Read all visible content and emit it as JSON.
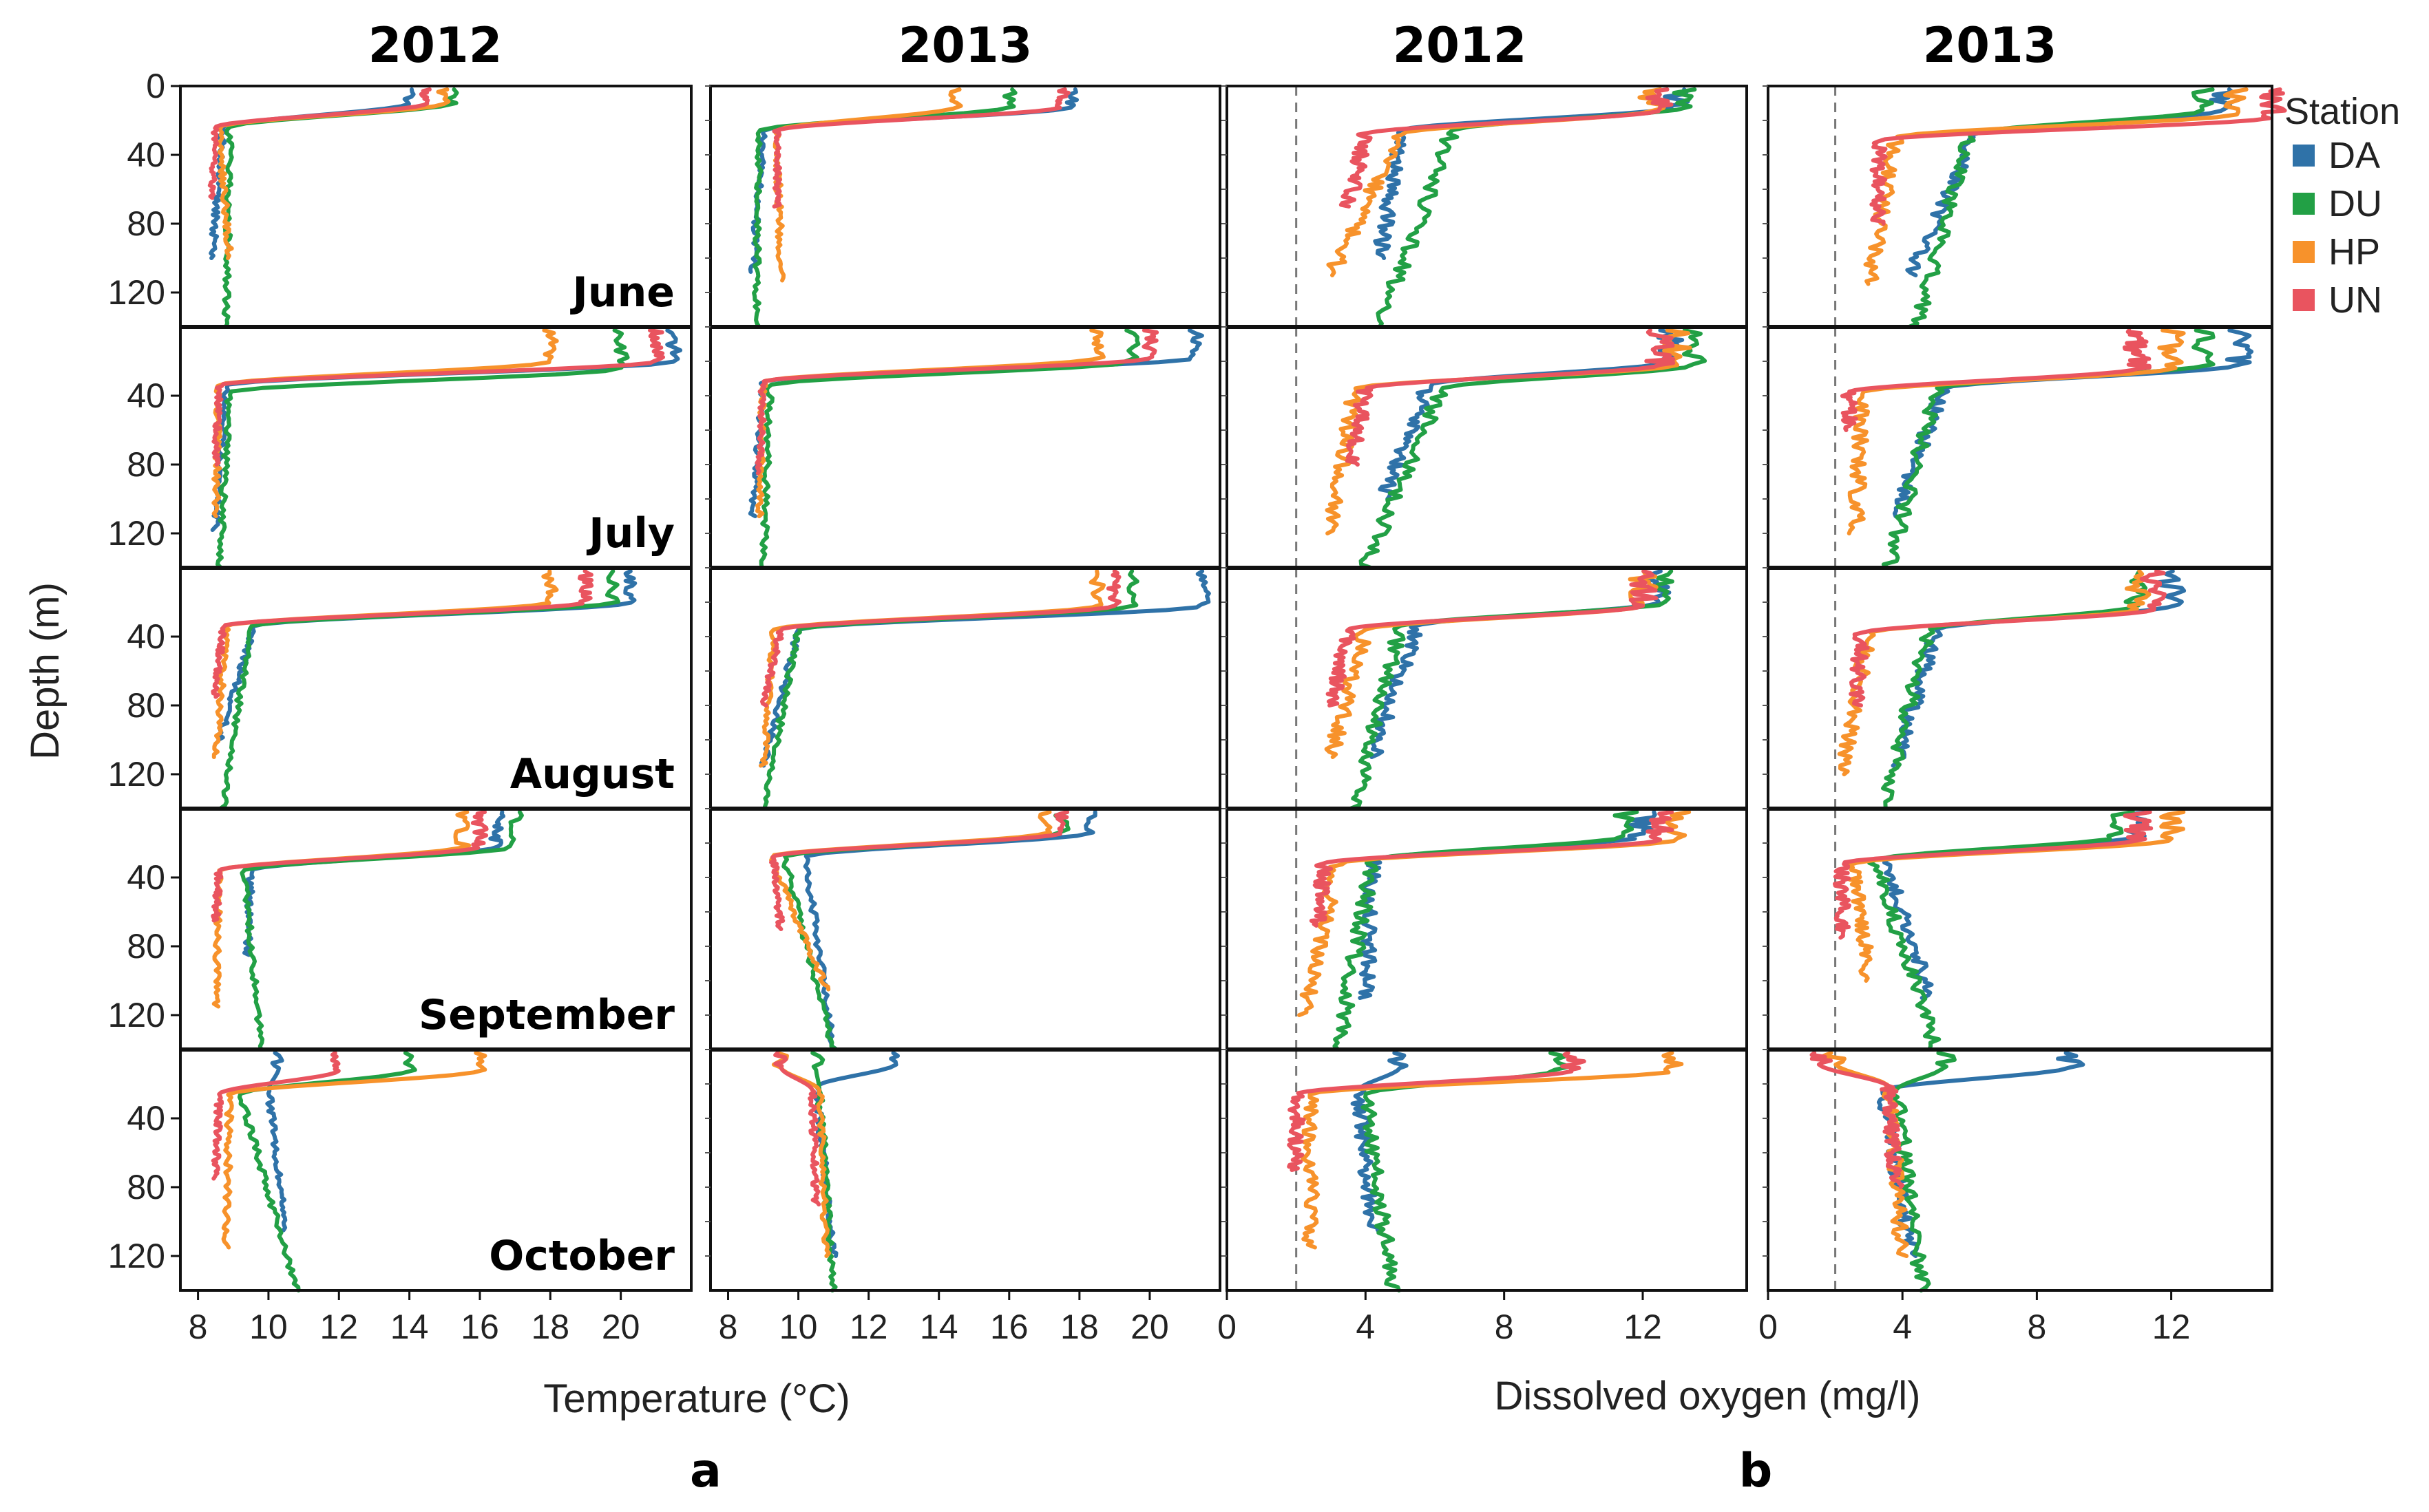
{
  "chart_data": {
    "type": "line",
    "title_row": {
      "col_titles": [
        "2012",
        "2013",
        "2012",
        "2013"
      ],
      "panel_labels": [
        "a",
        "b"
      ]
    },
    "ylabel": "Depth (m)",
    "yticks": [
      "0",
      "40",
      "80",
      "120"
    ],
    "ylim": [
      0,
      140
    ],
    "months": [
      "June",
      "July",
      "August",
      "September",
      "October"
    ],
    "temperature_axis": {
      "xlabel": "Temperature (°C)",
      "xticks": [
        "8",
        "10",
        "12",
        "14",
        "16",
        "18",
        "20"
      ],
      "xlim": [
        7.5,
        22
      ]
    },
    "oxygen_axis": {
      "xlabel": "Dissolved oxygen (mg/l)",
      "xticks": [
        "0",
        "4",
        "8",
        "12"
      ],
      "xlim": [
        0,
        15
      ],
      "threshold_mg_l": 2
    },
    "legend": {
      "title": "Station",
      "entries": [
        {
          "name": "DA",
          "color": "#2f72a8"
        },
        {
          "name": "DU",
          "color": "#22a045"
        },
        {
          "name": "HP",
          "color": "#f7922b"
        },
        {
          "name": "UN",
          "color": "#e9545f"
        }
      ]
    },
    "profiles": {
      "temperature": [
        [
          {
            "DA": {
              "surface": 14.0,
              "mid": 8.7,
              "deep": 8.4,
              "thermo_depth": 10,
              "max_depth": 100
            },
            "DU": {
              "surface": 15.2,
              "mid": 8.9,
              "deep": 8.8,
              "thermo_depth": 10,
              "max_depth": 140
            },
            "HP": {
              "surface": 15.0,
              "mid": 8.6,
              "deep": 8.9,
              "thermo_depth": 10,
              "max_depth": 100
            },
            "UN": {
              "surface": 14.5,
              "mid": 8.5,
              "deep": 8.4,
              "thermo_depth": 10,
              "max_depth": 65
            }
          },
          {
            "DA": {
              "surface": 17.8,
              "mid": 9.0,
              "deep": 8.7,
              "thermo_depth": 12,
              "max_depth": 108
            },
            "DU": {
              "surface": 16.0,
              "mid": 8.9,
              "deep": 8.8,
              "thermo_depth": 12,
              "max_depth": 140
            },
            "HP": {
              "surface": 14.5,
              "mid": 9.4,
              "deep": 9.5,
              "thermo_depth": 12,
              "max_depth": 113
            },
            "UN": {
              "surface": 17.5,
              "mid": 9.4,
              "deep": 9.4,
              "thermo_depth": 12,
              "max_depth": 70
            }
          }
        ],
        [
          {
            "DA": {
              "surface": 21.5,
              "mid": 8.8,
              "deep": 8.5,
              "thermo_depth": 20,
              "max_depth": 118
            },
            "DU": {
              "surface": 20.0,
              "mid": 8.9,
              "deep": 8.6,
              "thermo_depth": 24,
              "max_depth": 140
            },
            "HP": {
              "surface": 18.0,
              "mid": 8.6,
              "deep": 8.5,
              "thermo_depth": 20,
              "max_depth": 110
            },
            "UN": {
              "surface": 21.0,
              "mid": 8.6,
              "deep": 8.5,
              "thermo_depth": 20,
              "max_depth": 80
            }
          },
          {
            "DA": {
              "surface": 21.3,
              "mid": 9.0,
              "deep": 8.7,
              "thermo_depth": 18,
              "max_depth": 110
            },
            "DU": {
              "surface": 19.5,
              "mid": 9.2,
              "deep": 9.0,
              "thermo_depth": 20,
              "max_depth": 140
            },
            "HP": {
              "surface": 18.5,
              "mid": 9.0,
              "deep": 8.9,
              "thermo_depth": 18,
              "max_depth": 110
            },
            "UN": {
              "surface": 20.0,
              "mid": 9.0,
              "deep": 8.9,
              "thermo_depth": 18,
              "max_depth": 85
            }
          }
        ],
        [
          {
            "DA": {
              "surface": 20.3,
              "mid": 9.6,
              "deep": 8.6,
              "thermo_depth": 20,
              "max_depth": 100
            },
            "DU": {
              "surface": 19.8,
              "mid": 9.5,
              "deep": 8.7,
              "thermo_depth": 20,
              "max_depth": 140
            },
            "HP": {
              "surface": 18.0,
              "mid": 8.8,
              "deep": 8.5,
              "thermo_depth": 20,
              "max_depth": 110
            },
            "UN": {
              "surface": 19.0,
              "mid": 8.7,
              "deep": 8.5,
              "thermo_depth": 20,
              "max_depth": 75
            }
          },
          {
            "DA": {
              "surface": 21.5,
              "mid": 10.0,
              "deep": 9.0,
              "thermo_depth": 22,
              "max_depth": 115
            },
            "DU": {
              "surface": 19.5,
              "mid": 10.0,
              "deep": 9.0,
              "thermo_depth": 22,
              "max_depth": 140
            },
            "HP": {
              "surface": 18.5,
              "mid": 9.3,
              "deep": 9.0,
              "thermo_depth": 22,
              "max_depth": 115
            },
            "UN": {
              "surface": 19.0,
              "mid": 9.5,
              "deep": 9.0,
              "thermo_depth": 22,
              "max_depth": 80
            }
          }
        ],
        [
          {
            "DA": {
              "surface": 16.5,
              "mid": 9.5,
              "deep": 9.4,
              "thermo_depth": 22,
              "max_depth": 85
            },
            "DU": {
              "surface": 17.0,
              "mid": 9.3,
              "deep": 9.8,
              "thermo_depth": 22,
              "max_depth": 140
            },
            "HP": {
              "surface": 15.5,
              "mid": 8.6,
              "deep": 8.5,
              "thermo_depth": 22,
              "max_depth": 115
            },
            "UN": {
              "surface": 16.0,
              "mid": 8.6,
              "deep": 8.5,
              "thermo_depth": 22,
              "max_depth": 65
            }
          },
          {
            "DA": {
              "surface": 18.3,
              "mid": 10.2,
              "deep": 11.0,
              "thermo_depth": 14,
              "max_depth": 140
            },
            "DU": {
              "surface": 17.5,
              "mid": 9.6,
              "deep": 11.0,
              "thermo_depth": 14,
              "max_depth": 140
            },
            "HP": {
              "surface": 17.0,
              "mid": 9.2,
              "deep": 10.8,
              "thermo_depth": 14,
              "max_depth": 105
            },
            "UN": {
              "surface": 17.5,
              "mid": 9.3,
              "deep": 9.5,
              "thermo_depth": 14,
              "max_depth": 70
            }
          }
        ],
        [
          {
            "DA": {
              "surface": 10.3,
              "mid": 10.0,
              "deep": 10.5,
              "thermo_depth": 10,
              "max_depth": 105
            },
            "DU": {
              "surface": 14.0,
              "mid": 9.2,
              "deep": 10.8,
              "thermo_depth": 12,
              "max_depth": 140
            },
            "HP": {
              "surface": 16.0,
              "mid": 8.9,
              "deep": 8.8,
              "thermo_depth": 12,
              "max_depth": 115
            },
            "UN": {
              "surface": 12.0,
              "mid": 8.6,
              "deep": 8.5,
              "thermo_depth": 12,
              "max_depth": 75
            }
          },
          {
            "DA": {
              "surface": 12.8,
              "mid": 10.5,
              "deep": 11.0,
              "thermo_depth": 8,
              "max_depth": 120
            },
            "DU": {
              "surface": 10.5,
              "mid": 10.6,
              "deep": 11.0,
              "thermo_depth": 10,
              "max_depth": 140
            },
            "HP": {
              "surface": 9.5,
              "mid": 10.6,
              "deep": 10.8,
              "thermo_depth": 10,
              "max_depth": 120
            },
            "UN": {
              "surface": 9.5,
              "mid": 10.4,
              "deep": 10.5,
              "thermo_depth": 10,
              "max_depth": 90
            }
          }
        ]
      ],
      "oxygen": [
        [
          {
            "DA": {
              "surface": 13.0,
              "mid": 5.0,
              "deep": 4.4,
              "thermo_depth": 12,
              "max_depth": 100
            },
            "DU": {
              "surface": 13.3,
              "mid": 6.5,
              "deep": 4.4,
              "thermo_depth": 12,
              "max_depth": 140
            },
            "HP": {
              "surface": 12.3,
              "mid": 5.0,
              "deep": 3.0,
              "thermo_depth": 14,
              "max_depth": 110
            },
            "UN": {
              "surface": 12.5,
              "mid": 4.0,
              "deep": 3.5,
              "thermo_depth": 14,
              "max_depth": 70
            }
          },
          {
            "DA": {
              "surface": 13.5,
              "mid": 6.2,
              "deep": 4.2,
              "thermo_depth": 14,
              "max_depth": 110
            },
            "DU": {
              "surface": 13.0,
              "mid": 6.0,
              "deep": 4.4,
              "thermo_depth": 14,
              "max_depth": 140
            },
            "HP": {
              "surface": 14.0,
              "mid": 3.8,
              "deep": 3.0,
              "thermo_depth": 16,
              "max_depth": 115
            },
            "UN": {
              "surface": 15.0,
              "mid": 3.3,
              "deep": 3.3,
              "thermo_depth": 18,
              "max_depth": 80
            }
          }
        ],
        [
          {
            "DA": {
              "surface": 12.8,
              "mid": 5.8,
              "deep": 4.5,
              "thermo_depth": 20,
              "max_depth": 100
            },
            "DU": {
              "surface": 13.5,
              "mid": 6.2,
              "deep": 4.0,
              "thermo_depth": 22,
              "max_depth": 140
            },
            "HP": {
              "surface": 13.0,
              "mid": 3.7,
              "deep": 3.0,
              "thermo_depth": 22,
              "max_depth": 120
            },
            "UN": {
              "surface": 12.5,
              "mid": 4.0,
              "deep": 3.6,
              "thermo_depth": 22,
              "max_depth": 80
            }
          },
          {
            "DA": {
              "surface": 14.0,
              "mid": 5.2,
              "deep": 3.8,
              "thermo_depth": 22,
              "max_depth": 110
            },
            "DU": {
              "surface": 13.0,
              "mid": 5.0,
              "deep": 3.6,
              "thermo_depth": 22,
              "max_depth": 140
            },
            "HP": {
              "surface": 12.0,
              "mid": 2.8,
              "deep": 2.6,
              "thermo_depth": 24,
              "max_depth": 120
            },
            "UN": {
              "surface": 11.0,
              "mid": 2.4,
              "deep": 2.4,
              "thermo_depth": 24,
              "max_depth": 60
            }
          }
        ],
        [
          {
            "DA": {
              "surface": 12.5,
              "mid": 5.5,
              "deep": 4.2,
              "thermo_depth": 20,
              "max_depth": 110
            },
            "DU": {
              "surface": 12.8,
              "mid": 5.0,
              "deep": 3.7,
              "thermo_depth": 20,
              "max_depth": 140
            },
            "HP": {
              "surface": 12.0,
              "mid": 4.0,
              "deep": 3.0,
              "thermo_depth": 22,
              "max_depth": 110
            },
            "UN": {
              "surface": 12.0,
              "mid": 3.5,
              "deep": 3.0,
              "thermo_depth": 22,
              "max_depth": 80
            }
          },
          {
            "DA": {
              "surface": 12.0,
              "mid": 5.0,
              "deep": 3.8,
              "thermo_depth": 22,
              "max_depth": 115
            },
            "DU": {
              "surface": 11.0,
              "mid": 4.8,
              "deep": 3.4,
              "thermo_depth": 22,
              "max_depth": 140
            },
            "HP": {
              "surface": 11.0,
              "mid": 3.0,
              "deep": 2.2,
              "thermo_depth": 24,
              "max_depth": 120
            },
            "UN": {
              "surface": 11.5,
              "mid": 2.8,
              "deep": 2.6,
              "thermo_depth": 24,
              "max_depth": 80
            }
          }
        ],
        [
          {
            "DA": {
              "surface": 12.0,
              "mid": 4.2,
              "deep": 4.0,
              "thermo_depth": 16,
              "max_depth": 110
            },
            "DU": {
              "surface": 11.5,
              "mid": 4.2,
              "deep": 3.2,
              "thermo_depth": 16,
              "max_depth": 140
            },
            "HP": {
              "surface": 13.0,
              "mid": 3.2,
              "deep": 2.2,
              "thermo_depth": 18,
              "max_depth": 120
            },
            "UN": {
              "surface": 12.5,
              "mid": 2.8,
              "deep": 2.6,
              "thermo_depth": 18,
              "max_depth": 68
            }
          },
          {
            "DA": {
              "surface": 11.0,
              "mid": 3.5,
              "deep": 4.8,
              "thermo_depth": 16,
              "max_depth": 110
            },
            "DU": {
              "surface": 10.5,
              "mid": 3.2,
              "deep": 5.0,
              "thermo_depth": 16,
              "max_depth": 140
            },
            "HP": {
              "surface": 12.0,
              "mid": 2.6,
              "deep": 3.0,
              "thermo_depth": 18,
              "max_depth": 100
            },
            "UN": {
              "surface": 11.0,
              "mid": 2.2,
              "deep": 2.2,
              "thermo_depth": 18,
              "max_depth": 75
            }
          }
        ],
        [
          {
            "DA": {
              "surface": 5.0,
              "mid": 3.8,
              "deep": 4.2,
              "thermo_depth": 10,
              "max_depth": 105
            },
            "DU": {
              "surface": 9.5,
              "mid": 4.0,
              "deep": 4.8,
              "thermo_depth": 12,
              "max_depth": 140
            },
            "HP": {
              "surface": 13.0,
              "mid": 2.4,
              "deep": 2.4,
              "thermo_depth": 12,
              "max_depth": 115
            },
            "UN": {
              "surface": 10.0,
              "mid": 2.0,
              "deep": 2.0,
              "thermo_depth": 12,
              "max_depth": 70
            }
          },
          {
            "DA": {
              "surface": 9.0,
              "mid": 3.4,
              "deep": 4.3,
              "thermo_depth": 10,
              "max_depth": 120
            },
            "DU": {
              "surface": 5.2,
              "mid": 3.8,
              "deep": 4.6,
              "thermo_depth": 10,
              "max_depth": 140
            },
            "HP": {
              "surface": 2.0,
              "mid": 3.6,
              "deep": 4.0,
              "thermo_depth": 8,
              "max_depth": 120
            },
            "UN": {
              "surface": 1.5,
              "mid": 3.6,
              "deep": 3.8,
              "thermo_depth": 8,
              "max_depth": 80
            }
          }
        ]
      ]
    }
  }
}
